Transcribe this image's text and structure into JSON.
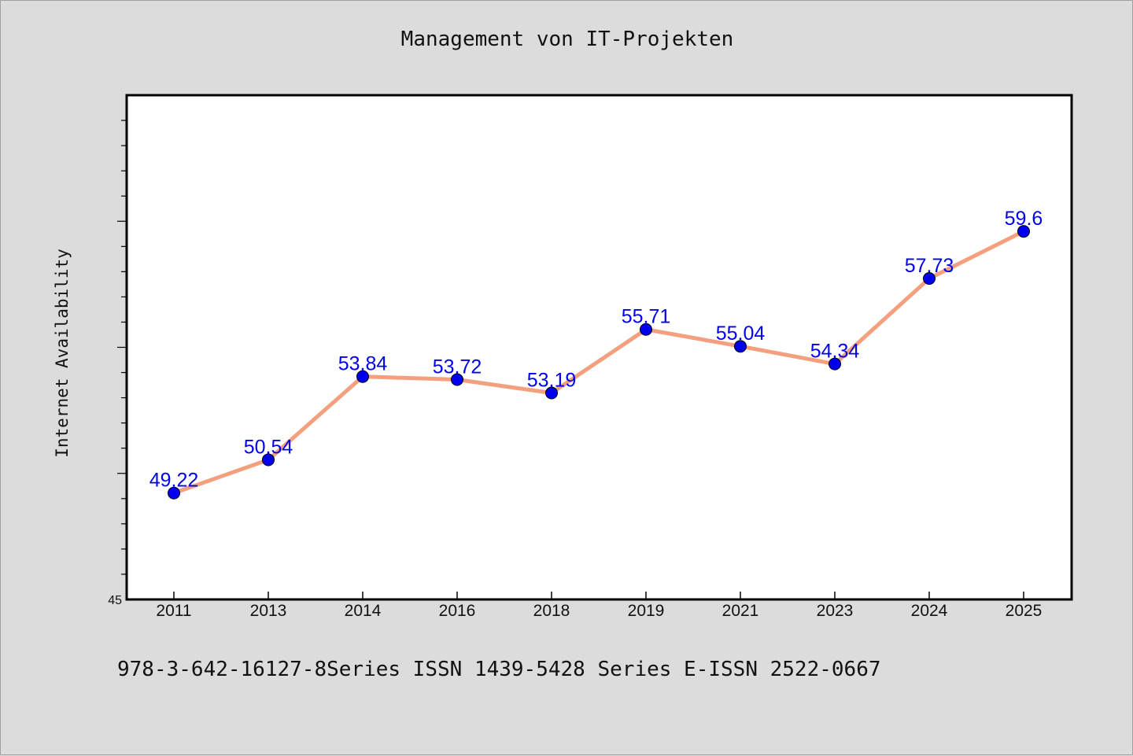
{
  "chart_data": {
    "type": "line",
    "title": "Management von IT-Projekten",
    "ylabel": "Internet Availability",
    "xlabel": "",
    "categories": [
      "2011",
      "2013",
      "2014",
      "2016",
      "2018",
      "2019",
      "2021",
      "2023",
      "2024",
      "2025"
    ],
    "series": [
      {
        "values": [
          49.22,
          50.54,
          53.84,
          53.72,
          53.19,
          55.71,
          55.04,
          54.34,
          57.73,
          59.6
        ],
        "labels": [
          "49.22",
          "50.54",
          "53.84",
          "53.72",
          "53.19",
          "55.71",
          "55.04",
          "54.34",
          "57.73",
          "59.6"
        ],
        "line_color": "#f4a07e",
        "marker_color": "#0000ee",
        "label_color": "#0000ee"
      }
    ],
    "ylim": [
      45,
      65
    ],
    "y_min_label": "45",
    "grid": false,
    "legend": "none"
  },
  "footer": {
    "text": "978-3-642-16127-8Series ISSN 1439-5428 Series E-ISSN 2522-0667"
  }
}
